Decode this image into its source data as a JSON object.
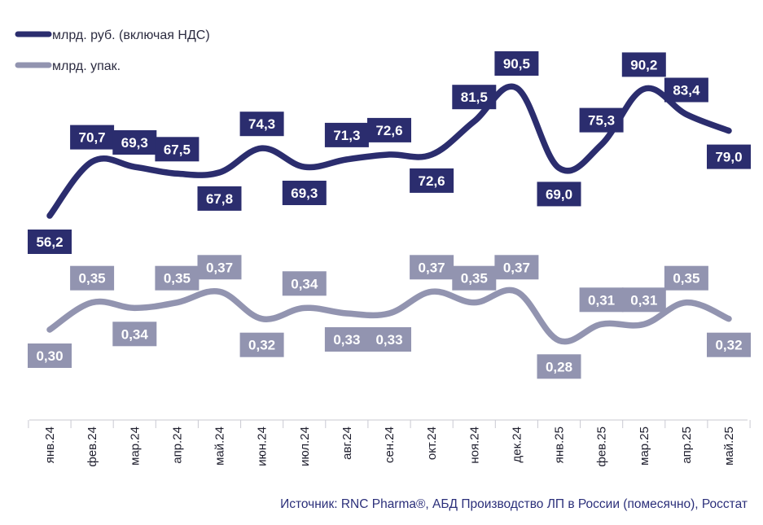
{
  "chart_data": {
    "type": "line",
    "categories": [
      "янв.24",
      "фев.24",
      "мар.24",
      "апр.24",
      "май.24",
      "июн.24",
      "июл.24",
      "авг.24",
      "сен.24",
      "окт.24",
      "ноя.24",
      "дек.24",
      "янв.25",
      "фев.25",
      "мар.25",
      "апр.25",
      "май.25"
    ],
    "series": [
      {
        "name": "млрд. руб. (включая НДС)",
        "color": "#2b2d6e",
        "values": [
          56.2,
          70.7,
          69.3,
          67.5,
          67.8,
          74.3,
          69.3,
          71.3,
          72.6,
          72.6,
          81.5,
          90.5,
          69.0,
          75.3,
          90.2,
          83.4,
          79.0
        ],
        "labels": [
          "56,2",
          "70,7",
          "69,3",
          "67,5",
          "67,8",
          "74,3",
          "69,3",
          "71,3",
          "72,6",
          "72,6",
          "81,5",
          "90,5",
          "69,0",
          "75,3",
          "90,2",
          "83,4",
          "79,0"
        ]
      },
      {
        "name": "млрд. упак.",
        "color": "#9294b0",
        "values": [
          0.3,
          0.35,
          0.34,
          0.35,
          0.37,
          0.32,
          0.34,
          0.33,
          0.33,
          0.37,
          0.35,
          0.37,
          0.28,
          0.31,
          0.31,
          0.35,
          0.32
        ],
        "labels": [
          "0,30",
          "0,35",
          "0,34",
          "0,35",
          "0,37",
          "0,32",
          "0,34",
          "0,33",
          "0,33",
          "0,37",
          "0,35",
          "0,37",
          "0,28",
          "0,31",
          "0,31",
          "0,35",
          "0,32"
        ]
      }
    ],
    "legend_position": "top-left",
    "grid": false
  },
  "source": "Источник: RNC Pharma®, АБД Производство ЛП в России (помесячно), Росстат"
}
